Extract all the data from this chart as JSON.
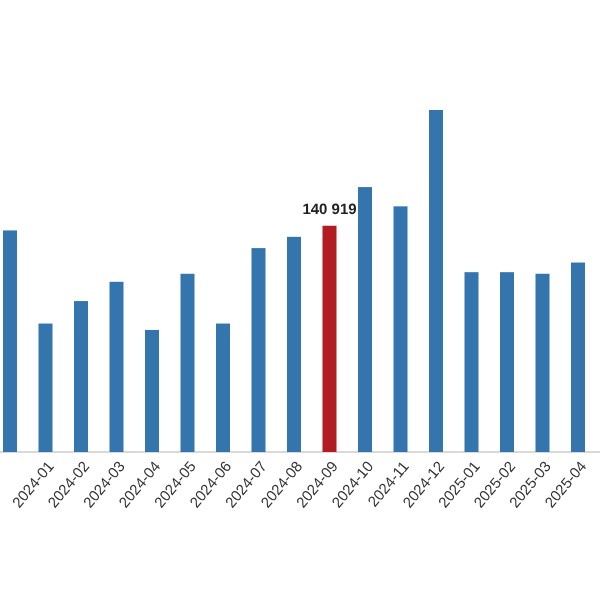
{
  "chart_data": {
    "type": "bar",
    "categories": [
      null,
      "2024-01",
      "2024-02",
      "2024-03",
      "2024-04",
      "2024-05",
      "2024-06",
      "2024-07",
      "2024-08",
      "2024-09",
      "2024-10",
      "2024-11",
      "2024-12",
      "2025-01",
      "2025-02",
      "2025-03",
      "2025-04"
    ],
    "values": [
      138000,
      80000,
      94000,
      106000,
      76000,
      111000,
      80000,
      127000,
      134000,
      140919,
      165000,
      153000,
      213000,
      112000,
      112000,
      111000,
      118000
    ],
    "colors": [
      "#3575ad",
      "#3575ad",
      "#3575ad",
      "#3575ad",
      "#3575ad",
      "#3575ad",
      "#3575ad",
      "#3575ad",
      "#3575ad",
      "#b01c22",
      "#3575ad",
      "#3575ad",
      "#3575ad",
      "#3575ad",
      "#3575ad",
      "#3575ad",
      "#3575ad"
    ],
    "value_labels": [
      null,
      null,
      null,
      null,
      null,
      null,
      null,
      null,
      null,
      "140 919",
      null,
      null,
      null,
      null,
      null,
      null,
      null
    ]
  }
}
